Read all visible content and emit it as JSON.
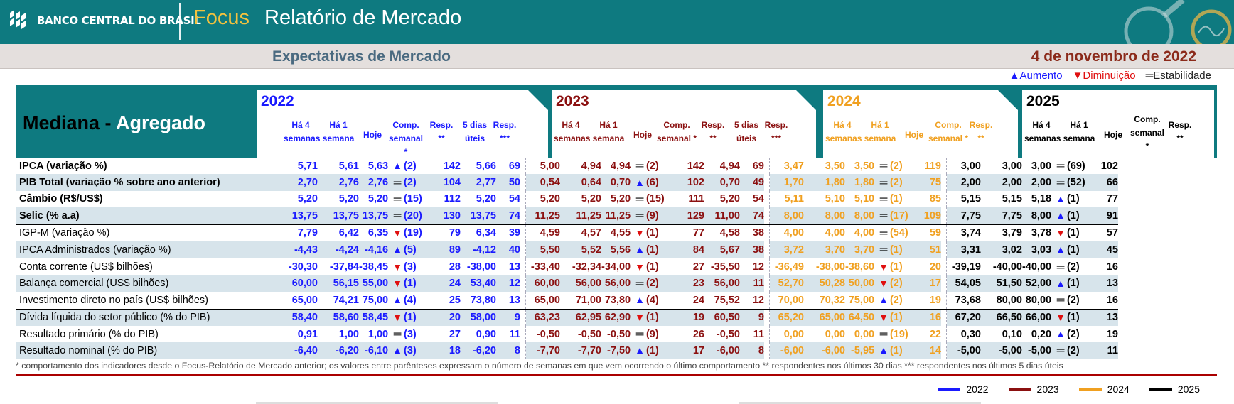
{
  "header": {
    "bank": "BANCO CENTRAL DO BRASIL",
    "focus": "Focus",
    "title": "Relatório de Mercado",
    "subtitle": "Expectativas de Mercado",
    "date": "4 de novembro de 2022"
  },
  "legend_top": {
    "up": "Aumento",
    "down": "Diminuição",
    "eq": "Estabilidade"
  },
  "mediana": {
    "a": "Mediana - ",
    "b": "Agregado"
  },
  "years": [
    "2022",
    "2023",
    "2024",
    "2025"
  ],
  "col_headers": {
    "ha4": [
      "Há 4",
      "semanas"
    ],
    "ha1": [
      "Há 1",
      "semana"
    ],
    "hoje": "Hoje",
    "comp": [
      "Comp.",
      "semanal *"
    ],
    "resp": [
      "Resp.",
      "**"
    ],
    "dias5": [
      "5 dias",
      "úteis"
    ],
    "resp3": [
      "Resp.",
      "***"
    ],
    "comp25": [
      "Comp.",
      "semanal",
      "*"
    ]
  },
  "rows": [
    {
      "label": "IPCA (variação %)",
      "bold": true,
      "shade": false,
      "sep": false,
      "y": [
        [
          "5,71",
          "5,61",
          "5,63",
          "up",
          "(2)",
          "142",
          "5,66",
          "69"
        ],
        [
          "5,00",
          "4,94",
          "4,94",
          "eq",
          "(2)",
          "142",
          "4,94",
          "69"
        ],
        [
          "3,47",
          "3,50",
          "3,50",
          "eq",
          "(2)",
          "119"
        ],
        [
          "3,00",
          "3,00",
          "3,00",
          "eq",
          "(69)",
          "102"
        ]
      ]
    },
    {
      "label": "PIB Total (variação % sobre ano anterior)",
      "bold": true,
      "shade": true,
      "sep": false,
      "y": [
        [
          "2,70",
          "2,76",
          "2,76",
          "eq",
          "(2)",
          "104",
          "2,77",
          "50"
        ],
        [
          "0,54",
          "0,64",
          "0,70",
          "up",
          "(6)",
          "102",
          "0,70",
          "49"
        ],
        [
          "1,70",
          "1,80",
          "1,80",
          "eq",
          "(2)",
          "75"
        ],
        [
          "2,00",
          "2,00",
          "2,00",
          "eq",
          "(52)",
          "66"
        ]
      ]
    },
    {
      "label": "Câmbio (R$/US$)",
      "bold": true,
      "shade": false,
      "sep": false,
      "y": [
        [
          "5,20",
          "5,20",
          "5,20",
          "eq",
          "(15)",
          "112",
          "5,20",
          "54"
        ],
        [
          "5,20",
          "5,20",
          "5,20",
          "eq",
          "(15)",
          "111",
          "5,20",
          "54"
        ],
        [
          "5,11",
          "5,10",
          "5,10",
          "eq",
          "(1)",
          "85"
        ],
        [
          "5,15",
          "5,15",
          "5,18",
          "up",
          "(1)",
          "77"
        ]
      ]
    },
    {
      "label": "Selic (% a.a)",
      "bold": true,
      "shade": true,
      "sep": false,
      "y": [
        [
          "13,75",
          "13,75",
          "13,75",
          "eq",
          "(20)",
          "130",
          "13,75",
          "74"
        ],
        [
          "11,25",
          "11,25",
          "11,25",
          "eq",
          "(9)",
          "129",
          "11,00",
          "74"
        ],
        [
          "8,00",
          "8,00",
          "8,00",
          "eq",
          "(17)",
          "109"
        ],
        [
          "7,75",
          "7,75",
          "8,00",
          "up",
          "(1)",
          "91"
        ]
      ]
    },
    {
      "label": "IGP-M (variação %)",
      "bold": false,
      "shade": false,
      "sep": true,
      "y": [
        [
          "7,79",
          "6,42",
          "6,35",
          "dn",
          "(19)",
          "79",
          "6,34",
          "39"
        ],
        [
          "4,59",
          "4,57",
          "4,55",
          "dn",
          "(1)",
          "77",
          "4,58",
          "38"
        ],
        [
          "4,00",
          "4,00",
          "4,00",
          "eq",
          "(54)",
          "59"
        ],
        [
          "3,74",
          "3,79",
          "3,78",
          "dn",
          "(1)",
          "57"
        ]
      ]
    },
    {
      "label": "IPCA Administrados (variação %)",
      "bold": false,
      "shade": true,
      "sep": false,
      "y": [
        [
          "-4,43",
          "-4,24",
          "-4,16",
          "up",
          "(5)",
          "89",
          "-4,12",
          "40"
        ],
        [
          "5,50",
          "5,52",
          "5,56",
          "up",
          "(1)",
          "84",
          "5,67",
          "38"
        ],
        [
          "3,72",
          "3,70",
          "3,70",
          "eq",
          "(1)",
          "51"
        ],
        [
          "3,31",
          "3,02",
          "3,03",
          "up",
          "(1)",
          "45"
        ]
      ]
    },
    {
      "label": "Conta corrente (US$ bilhões)",
      "bold": false,
      "shade": false,
      "sep": true,
      "y": [
        [
          "-30,30",
          "-37,84",
          "-38,45",
          "dn",
          "(3)",
          "28",
          "-38,00",
          "13"
        ],
        [
          "-33,40",
          "-32,34",
          "-34,00",
          "dn",
          "(1)",
          "27",
          "-35,50",
          "12"
        ],
        [
          "-36,49",
          "-38,00",
          "-38,60",
          "dn",
          "(1)",
          "20"
        ],
        [
          "-39,19",
          "-40,00",
          "-40,00",
          "eq",
          "(2)",
          "16"
        ]
      ]
    },
    {
      "label": "Balança comercial (US$ bilhões)",
      "bold": false,
      "shade": true,
      "sep": false,
      "y": [
        [
          "60,00",
          "56,15",
          "55,00",
          "dn",
          "(1)",
          "24",
          "53,40",
          "12"
        ],
        [
          "60,00",
          "56,00",
          "56,00",
          "eq",
          "(2)",
          "23",
          "56,00",
          "11"
        ],
        [
          "52,70",
          "50,28",
          "50,00",
          "dn",
          "(2)",
          "17"
        ],
        [
          "54,05",
          "51,50",
          "52,00",
          "up",
          "(1)",
          "13"
        ]
      ]
    },
    {
      "label": "Investimento direto no país (US$ bilhões)",
      "bold": false,
      "shade": false,
      "sep": false,
      "y": [
        [
          "65,00",
          "74,21",
          "75,00",
          "up",
          "(4)",
          "25",
          "73,80",
          "13"
        ],
        [
          "65,00",
          "71,00",
          "73,80",
          "up",
          "(4)",
          "24",
          "75,52",
          "12"
        ],
        [
          "70,00",
          "70,32",
          "75,00",
          "up",
          "(2)",
          "19"
        ],
        [
          "73,68",
          "80,00",
          "80,00",
          "eq",
          "(2)",
          "16"
        ]
      ]
    },
    {
      "label": "Dívida líquida do setor público (% do PIB)",
      "bold": false,
      "shade": true,
      "sep": true,
      "y": [
        [
          "58,40",
          "58,60",
          "58,45",
          "dn",
          "(1)",
          "20",
          "58,00",
          "9"
        ],
        [
          "63,23",
          "62,95",
          "62,90",
          "dn",
          "(1)",
          "19",
          "60,50",
          "9"
        ],
        [
          "65,20",
          "65,00",
          "64,50",
          "dn",
          "(1)",
          "16"
        ],
        [
          "67,20",
          "66,50",
          "66,00",
          "dn",
          "(1)",
          "13"
        ]
      ]
    },
    {
      "label": "Resultado primário (% do PIB)",
      "bold": false,
      "shade": false,
      "sep": false,
      "y": [
        [
          "0,91",
          "1,00",
          "1,00",
          "eq",
          "(3)",
          "27",
          "0,90",
          "11"
        ],
        [
          "-0,50",
          "-0,50",
          "-0,50",
          "eq",
          "(9)",
          "26",
          "-0,50",
          "11"
        ],
        [
          "0,00",
          "0,00",
          "0,00",
          "eq",
          "(19)",
          "22"
        ],
        [
          "0,30",
          "0,10",
          "0,20",
          "up",
          "(2)",
          "19"
        ]
      ]
    },
    {
      "label": "Resultado nominal (% do PIB)",
      "bold": false,
      "shade": true,
      "sep": false,
      "y": [
        [
          "-6,40",
          "-6,20",
          "-6,10",
          "up",
          "(3)",
          "18",
          "-6,20",
          "8"
        ],
        [
          "-7,70",
          "-7,70",
          "-7,50",
          "up",
          "(1)",
          "17",
          "-6,00",
          "8"
        ],
        [
          "-6,00",
          "-6,00",
          "-5,95",
          "up",
          "(1)",
          "14"
        ],
        [
          "-5,00",
          "-5,00",
          "-5,00",
          "eq",
          "(2)",
          "11"
        ]
      ]
    }
  ],
  "footnote": "* comportamento dos indicadores desde o Focus-Relatório de Mercado anterior; os valores entre parênteses expressam o número de semanas em que vem ocorrendo o último comportamento ** respondentes nos últimos 30 dias *** respondentes nos últimos 5 dias úteis",
  "legend_bottom": [
    {
      "label": "2022",
      "color": "#1a1aff"
    },
    {
      "label": "2023",
      "color": "#8b1010"
    },
    {
      "label": "2024",
      "color": "#f0a020"
    },
    {
      "label": "2025",
      "color": "#000000"
    }
  ]
}
